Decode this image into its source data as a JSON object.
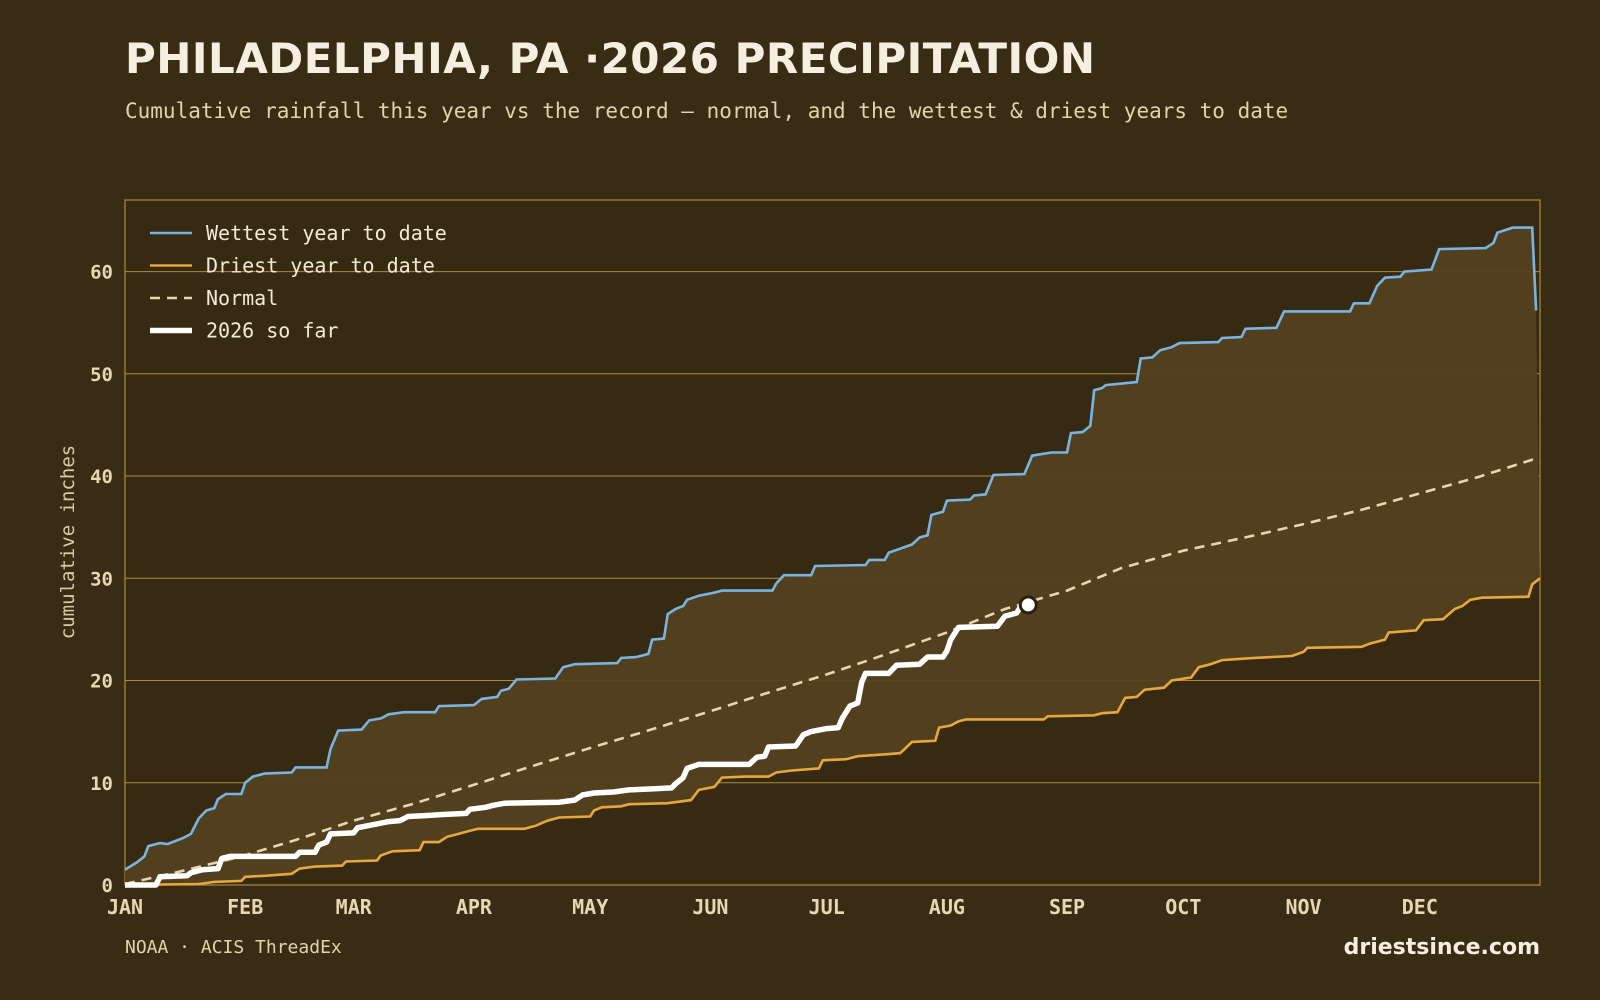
{
  "header": {
    "title": "PHILADELPHIA, PA ·2026 PRECIPITATION",
    "subtitle": "Cumulative rainfall this year vs the record — normal, and the wettest & driest years to date"
  },
  "footer": {
    "source": "NOAA · ACIS ThreadEx",
    "brand": "driestsince.com"
  },
  "colors": {
    "background": "#382c14",
    "band_fill": "#52401f",
    "grid": "#b08a3c",
    "wettest": "#79b4e0",
    "driest": "#e6a83e",
    "normal": "#e6d6b0",
    "current": "#ffffff"
  },
  "chart_data": {
    "type": "line",
    "title": "PHILADELPHIA, PA ·2026 PRECIPITATION",
    "ylabel": "cumulative inches",
    "xlabel": "",
    "xlim": [
      1,
      366
    ],
    "ylim": [
      0,
      67
    ],
    "grid": true,
    "legend_position": "top-left",
    "x_ticks": [
      {
        "label": "JAN",
        "day": 1
      },
      {
        "label": "FEB",
        "day": 32
      },
      {
        "label": "MAR",
        "day": 60
      },
      {
        "label": "APR",
        "day": 91
      },
      {
        "label": "MAY",
        "day": 121
      },
      {
        "label": "JUN",
        "day": 152
      },
      {
        "label": "JUL",
        "day": 182
      },
      {
        "label": "AUG",
        "day": 213
      },
      {
        "label": "SEP",
        "day": 244
      },
      {
        "label": "OCT",
        "day": 274
      },
      {
        "label": "NOV",
        "day": 305
      },
      {
        "label": "DEC",
        "day": 335
      }
    ],
    "y_ticks": [
      0,
      10,
      20,
      30,
      40,
      50,
      60
    ],
    "shaded_band": {
      "between": [
        "Wettest year to date",
        "Driest year to date"
      ]
    },
    "series": [
      {
        "name": "Wettest year to date",
        "style": "solid",
        "points": [
          [
            1,
            1.5
          ],
          [
            4,
            2.2
          ],
          [
            6,
            2.8
          ],
          [
            7,
            3.8
          ],
          [
            10,
            4.1
          ],
          [
            12,
            4.0
          ],
          [
            14,
            4.3
          ],
          [
            16,
            4.6
          ],
          [
            18,
            5.0
          ],
          [
            20,
            6.5
          ],
          [
            22,
            7.3
          ],
          [
            24,
            7.5
          ],
          [
            25,
            8.4
          ],
          [
            27,
            8.9
          ],
          [
            31,
            8.9
          ],
          [
            32,
            10.0
          ],
          [
            34,
            10.6
          ],
          [
            37,
            10.9
          ],
          [
            44,
            11.0
          ],
          [
            45,
            11.5
          ],
          [
            53,
            11.5
          ],
          [
            54,
            13.3
          ],
          [
            56,
            15.1
          ],
          [
            62,
            15.2
          ],
          [
            64,
            16.1
          ],
          [
            67,
            16.3
          ],
          [
            69,
            16.7
          ],
          [
            73,
            16.9
          ],
          [
            81,
            16.9
          ],
          [
            82,
            17.5
          ],
          [
            91,
            17.6
          ],
          [
            93,
            18.2
          ],
          [
            97,
            18.4
          ],
          [
            98,
            19.0
          ],
          [
            100,
            19.2
          ],
          [
            102,
            20.1
          ],
          [
            112,
            20.2
          ],
          [
            114,
            21.3
          ],
          [
            117,
            21.6
          ],
          [
            128,
            21.7
          ],
          [
            129,
            22.2
          ],
          [
            133,
            22.3
          ],
          [
            136,
            22.6
          ],
          [
            137,
            24.0
          ],
          [
            140,
            24.1
          ],
          [
            141,
            26.5
          ],
          [
            143,
            27.0
          ],
          [
            145,
            27.3
          ],
          [
            146,
            27.9
          ],
          [
            149,
            28.3
          ],
          [
            153,
            28.6
          ],
          [
            155,
            28.8
          ],
          [
            168,
            28.8
          ],
          [
            169,
            29.5
          ],
          [
            171,
            30.3
          ],
          [
            178,
            30.3
          ],
          [
            179,
            31.2
          ],
          [
            192,
            31.3
          ],
          [
            193,
            31.8
          ],
          [
            197,
            31.8
          ],
          [
            198,
            32.5
          ],
          [
            201,
            32.9
          ],
          [
            204,
            33.3
          ],
          [
            206,
            34.0
          ],
          [
            208,
            34.2
          ],
          [
            209,
            36.2
          ],
          [
            212,
            36.5
          ],
          [
            213,
            37.6
          ],
          [
            219,
            37.7
          ],
          [
            220,
            38.1
          ],
          [
            223,
            38.2
          ],
          [
            225,
            40.1
          ],
          [
            233,
            40.2
          ],
          [
            235,
            42.0
          ],
          [
            240,
            42.3
          ],
          [
            244,
            42.3
          ],
          [
            245,
            44.2
          ],
          [
            248,
            44.3
          ],
          [
            250,
            44.9
          ],
          [
            251,
            48.4
          ],
          [
            253,
            48.6
          ],
          [
            254,
            48.9
          ],
          [
            262,
            49.2
          ],
          [
            263,
            51.5
          ],
          [
            266,
            51.6
          ],
          [
            268,
            52.3
          ],
          [
            271,
            52.6
          ],
          [
            273,
            53.0
          ],
          [
            283,
            53.1
          ],
          [
            284,
            53.5
          ],
          [
            289,
            53.6
          ],
          [
            290,
            54.4
          ],
          [
            298,
            54.5
          ],
          [
            300,
            56.1
          ],
          [
            317,
            56.1
          ],
          [
            318,
            56.9
          ],
          [
            322,
            56.9
          ],
          [
            324,
            58.6
          ],
          [
            326,
            59.4
          ],
          [
            330,
            59.5
          ],
          [
            331,
            60.0
          ],
          [
            338,
            60.2
          ],
          [
            340,
            62.2
          ],
          [
            352,
            62.3
          ],
          [
            354,
            62.8
          ],
          [
            355,
            63.8
          ],
          [
            359,
            64.3
          ],
          [
            364,
            64.3
          ],
          [
            365,
            56.2
          ]
        ]
      },
      {
        "name": "Driest year to date",
        "style": "solid",
        "points": [
          [
            1,
            0.0
          ],
          [
            20,
            0.1
          ],
          [
            22,
            0.2
          ],
          [
            24,
            0.3
          ],
          [
            31,
            0.4
          ],
          [
            32,
            0.8
          ],
          [
            37,
            0.9
          ],
          [
            44,
            1.1
          ],
          [
            46,
            1.6
          ],
          [
            50,
            1.8
          ],
          [
            57,
            1.9
          ],
          [
            58,
            2.3
          ],
          [
            66,
            2.4
          ],
          [
            67,
            2.9
          ],
          [
            70,
            3.3
          ],
          [
            77,
            3.4
          ],
          [
            78,
            4.2
          ],
          [
            82,
            4.2
          ],
          [
            84,
            4.7
          ],
          [
            87,
            5.0
          ],
          [
            90,
            5.3
          ],
          [
            92,
            5.5
          ],
          [
            104,
            5.5
          ],
          [
            107,
            5.8
          ],
          [
            110,
            6.3
          ],
          [
            113,
            6.6
          ],
          [
            121,
            6.7
          ],
          [
            122,
            7.3
          ],
          [
            124,
            7.6
          ],
          [
            129,
            7.7
          ],
          [
            131,
            7.9
          ],
          [
            141,
            8.0
          ],
          [
            147,
            8.3
          ],
          [
            149,
            9.3
          ],
          [
            153,
            9.6
          ],
          [
            155,
            10.5
          ],
          [
            161,
            10.6
          ],
          [
            167,
            10.6
          ],
          [
            169,
            11.0
          ],
          [
            173,
            11.2
          ],
          [
            180,
            11.4
          ],
          [
            181,
            12.2
          ],
          [
            187,
            12.3
          ],
          [
            190,
            12.6
          ],
          [
            194,
            12.7
          ],
          [
            198,
            12.8
          ],
          [
            201,
            12.9
          ],
          [
            204,
            14.0
          ],
          [
            210,
            14.1
          ],
          [
            211,
            15.4
          ],
          [
            214,
            15.6
          ],
          [
            216,
            16.0
          ],
          [
            218,
            16.2
          ],
          [
            238,
            16.2
          ],
          [
            239,
            16.5
          ],
          [
            251,
            16.6
          ],
          [
            253,
            16.8
          ],
          [
            257,
            16.9
          ],
          [
            259,
            18.3
          ],
          [
            262,
            18.4
          ],
          [
            264,
            19.1
          ],
          [
            269,
            19.3
          ],
          [
            271,
            20.0
          ],
          [
            276,
            20.3
          ],
          [
            278,
            21.3
          ],
          [
            281,
            21.6
          ],
          [
            284,
            22.0
          ],
          [
            288,
            22.1
          ],
          [
            292,
            22.2
          ],
          [
            302,
            22.4
          ],
          [
            305,
            22.8
          ],
          [
            306,
            23.2
          ],
          [
            320,
            23.3
          ],
          [
            322,
            23.6
          ],
          [
            326,
            24.0
          ],
          [
            327,
            24.7
          ],
          [
            334,
            24.9
          ],
          [
            336,
            25.9
          ],
          [
            341,
            26.0
          ],
          [
            344,
            27.0
          ],
          [
            346,
            27.3
          ],
          [
            348,
            27.9
          ],
          [
            351,
            28.1
          ],
          [
            363,
            28.2
          ],
          [
            364,
            29.4
          ],
          [
            366,
            30.0
          ]
        ]
      },
      {
        "name": "Normal",
        "style": "dashed",
        "points": [
          [
            1,
            0.1
          ],
          [
            15,
            1.3
          ],
          [
            31,
            2.8
          ],
          [
            45,
            4.4
          ],
          [
            60,
            6.3
          ],
          [
            75,
            7.9
          ],
          [
            91,
            9.8
          ],
          [
            105,
            11.5
          ],
          [
            121,
            13.4
          ],
          [
            135,
            15.0
          ],
          [
            152,
            17.0
          ],
          [
            166,
            18.7
          ],
          [
            182,
            20.6
          ],
          [
            196,
            22.4
          ],
          [
            213,
            24.7
          ],
          [
            228,
            27.0
          ],
          [
            244,
            28.8
          ],
          [
            258,
            31.0
          ],
          [
            274,
            32.7
          ],
          [
            290,
            34.0
          ],
          [
            305,
            35.3
          ],
          [
            320,
            36.7
          ],
          [
            335,
            38.3
          ],
          [
            350,
            39.9
          ],
          [
            364,
            41.6
          ],
          [
            366,
            41.4
          ]
        ]
      },
      {
        "name": "2026 so far",
        "style": "solid-thick",
        "points": [
          [
            1,
            0.0
          ],
          [
            9,
            0.0
          ],
          [
            10,
            0.8
          ],
          [
            17,
            0.9
          ],
          [
            18,
            1.2
          ],
          [
            21,
            1.5
          ],
          [
            25,
            1.6
          ],
          [
            26,
            2.6
          ],
          [
            28,
            2.8
          ],
          [
            45,
            2.8
          ],
          [
            46,
            3.2
          ],
          [
            50,
            3.2
          ],
          [
            51,
            3.9
          ],
          [
            53,
            4.2
          ],
          [
            54,
            5.0
          ],
          [
            60,
            5.1
          ],
          [
            61,
            5.6
          ],
          [
            65,
            5.9
          ],
          [
            69,
            6.2
          ],
          [
            72,
            6.3
          ],
          [
            74,
            6.7
          ],
          [
            79,
            6.8
          ],
          [
            83,
            6.9
          ],
          [
            89,
            7.0
          ],
          [
            90,
            7.4
          ],
          [
            94,
            7.6
          ],
          [
            96,
            7.8
          ],
          [
            99,
            8.0
          ],
          [
            113,
            8.1
          ],
          [
            117,
            8.3
          ],
          [
            119,
            8.8
          ],
          [
            122,
            9.0
          ],
          [
            127,
            9.1
          ],
          [
            131,
            9.3
          ],
          [
            137,
            9.4
          ],
          [
            142,
            9.5
          ],
          [
            143,
            9.9
          ],
          [
            145,
            10.5
          ],
          [
            146,
            11.4
          ],
          [
            149,
            11.8
          ],
          [
            162,
            11.8
          ],
          [
            164,
            12.5
          ],
          [
            166,
            12.6
          ],
          [
            167,
            13.5
          ],
          [
            174,
            13.6
          ],
          [
            176,
            14.7
          ],
          [
            178,
            15.0
          ],
          [
            182,
            15.3
          ],
          [
            185,
            15.4
          ],
          [
            186,
            16.3
          ],
          [
            188,
            17.5
          ],
          [
            190,
            17.8
          ],
          [
            191,
            19.8
          ],
          [
            192,
            20.7
          ],
          [
            198,
            20.7
          ],
          [
            200,
            21.5
          ],
          [
            206,
            21.6
          ],
          [
            208,
            22.3
          ],
          [
            212,
            22.3
          ],
          [
            213,
            22.9
          ],
          [
            214,
            24.0
          ],
          [
            216,
            25.2
          ],
          [
            226,
            25.3
          ],
          [
            228,
            26.3
          ],
          [
            231,
            26.6
          ],
          [
            232,
            27.2
          ],
          [
            234,
            27.4
          ]
        ]
      }
    ],
    "marker": {
      "series": "2026 so far",
      "day": 234,
      "value": 27.4
    }
  }
}
